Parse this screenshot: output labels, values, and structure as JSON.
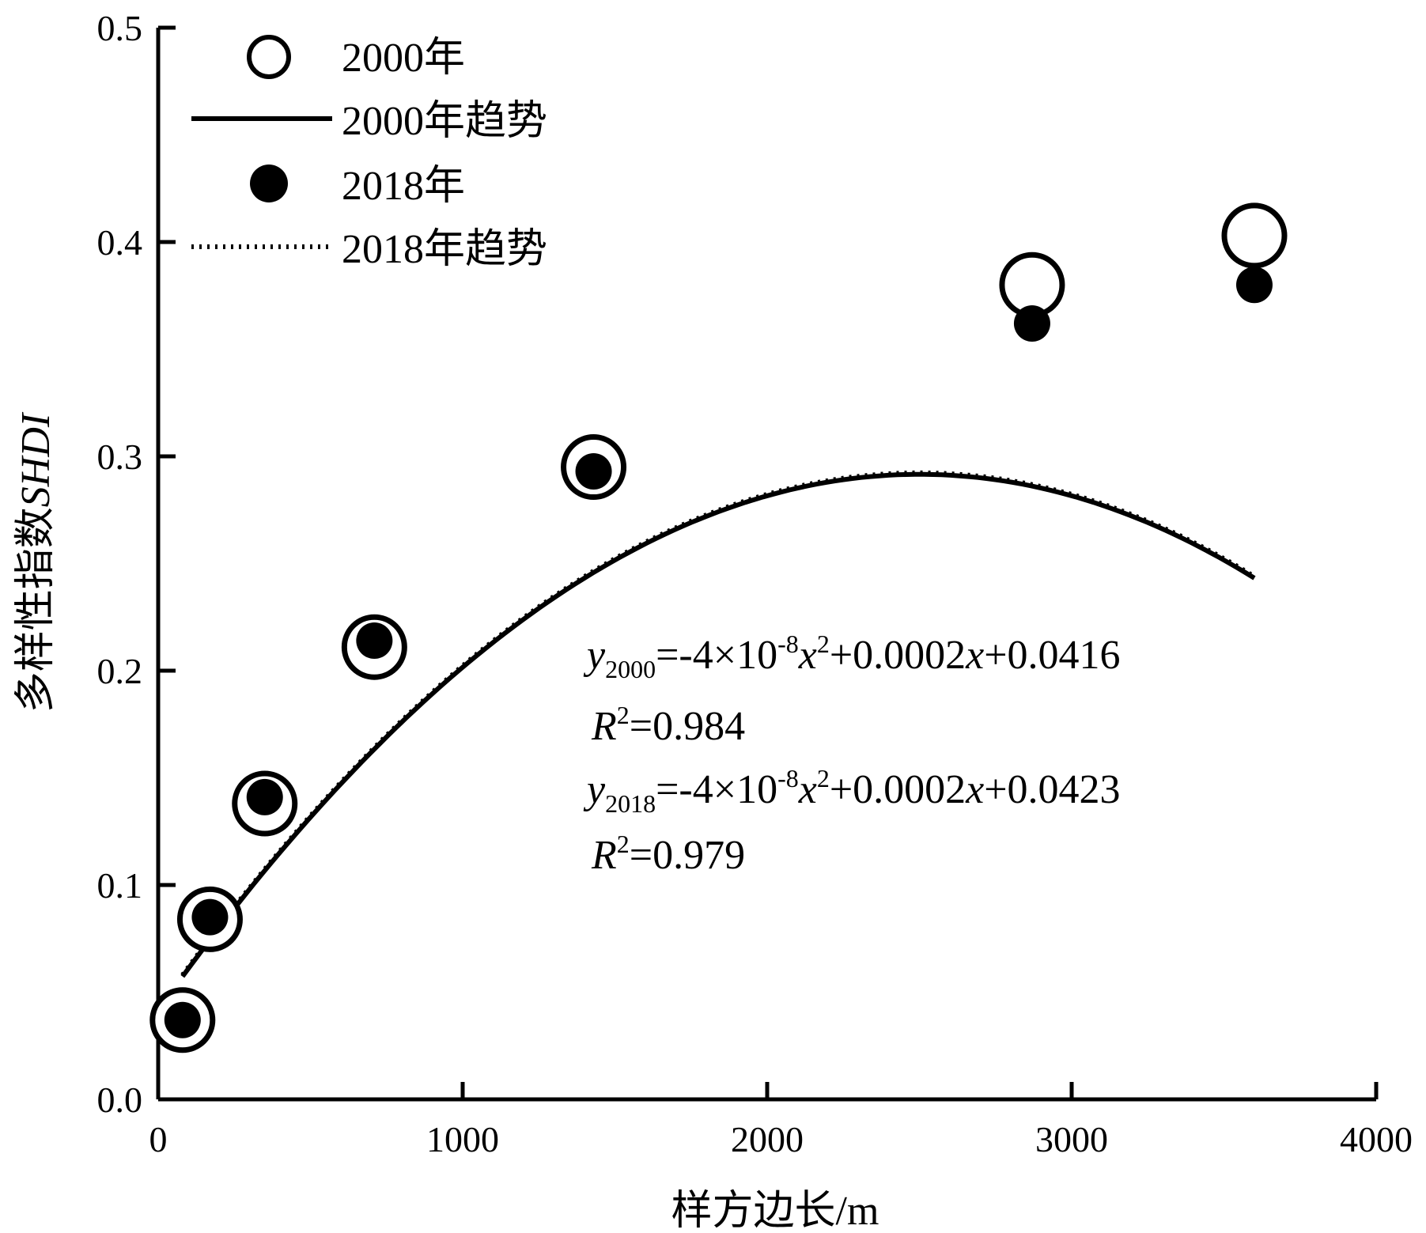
{
  "chart_data": {
    "type": "scatter",
    "xlabel": "样方边长/m",
    "ylabel_prefix": "多样性指数",
    "ylabel_italic": "SHDI",
    "xlim": [
      0,
      4000
    ],
    "ylim": [
      0.0,
      0.5
    ],
    "xticks": [
      "0",
      "1000",
      "2000",
      "3000",
      "4000"
    ],
    "yticks": [
      "0.0",
      "0.1",
      "0.2",
      "0.3",
      "0.4",
      "0.5"
    ],
    "grid": false,
    "legend_position": "top-left",
    "series": [
      {
        "name": "2000年",
        "marker": "open-circle",
        "points": [
          {
            "x": 80,
            "y": 0.037
          },
          {
            "x": 170,
            "y": 0.084
          },
          {
            "x": 350,
            "y": 0.138
          },
          {
            "x": 710,
            "y": 0.211
          },
          {
            "x": 1430,
            "y": 0.295
          },
          {
            "x": 2870,
            "y": 0.38
          },
          {
            "x": 3600,
            "y": 0.403
          }
        ]
      },
      {
        "name": "2000年趋势",
        "line": "solid",
        "coefficients": {
          "a": -4e-08,
          "b": 0.0002,
          "c": 0.0416
        },
        "x_range": [
          80,
          3600
        ]
      },
      {
        "name": "2018年",
        "marker": "filled-circle",
        "points": [
          {
            "x": 80,
            "y": 0.037
          },
          {
            "x": 170,
            "y": 0.085
          },
          {
            "x": 350,
            "y": 0.141
          },
          {
            "x": 710,
            "y": 0.214
          },
          {
            "x": 1430,
            "y": 0.293
          },
          {
            "x": 2870,
            "y": 0.362
          },
          {
            "x": 3600,
            "y": 0.38
          }
        ]
      },
      {
        "name": "2018年趋势",
        "line": "dotted",
        "coefficients": {
          "a": -4e-08,
          "b": 0.0002,
          "c": 0.0423
        },
        "x_range": [
          80,
          3600
        ]
      }
    ],
    "annotations": {
      "eq2000": {
        "y": "y",
        "sub": "2000",
        "rest1": "=-4×10",
        "sup1": "-8",
        "x1": "x",
        "sup2": "2",
        "rest2": "+0.0002",
        "x2": "x",
        "rest3": "+0.0416"
      },
      "r2000": {
        "R": "R",
        "sup": "2",
        "rest": "=0.984"
      },
      "eq2018": {
        "y": "y",
        "sub": "2018",
        "rest1": "=-4×10",
        "sup1": "-8",
        "x1": "x",
        "sup2": "2",
        "rest2": "+0.0002",
        "x2": "x",
        "rest3": "+0.0423"
      },
      "r2018": {
        "R": "R",
        "sup": "2",
        "rest": "=0.979"
      }
    }
  }
}
